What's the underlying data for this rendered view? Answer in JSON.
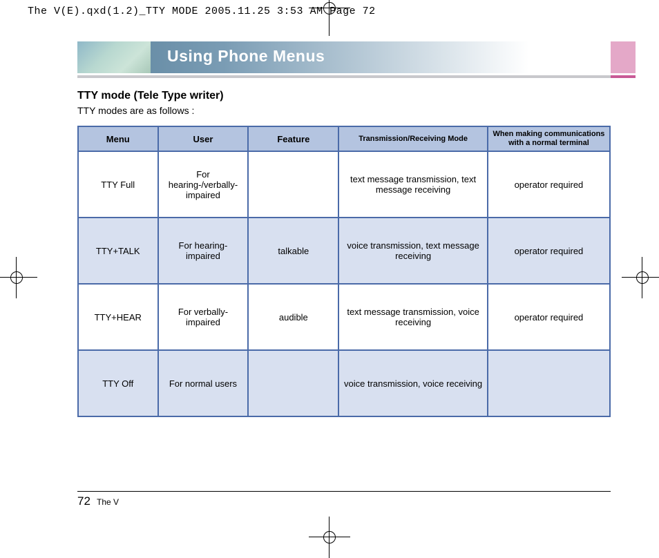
{
  "slug": "The V(E).qxd(1.2)_TTY MODE  2005.11.25  3:53 AM  Page 72",
  "header": {
    "title": "Using Phone Menus"
  },
  "section": {
    "title": "TTY mode (Tele Type writer)",
    "subtitle": "TTY modes are as follows :"
  },
  "table": {
    "columns": [
      "Menu",
      "User",
      "Feature",
      "Transmission/Receiving Mode",
      "When making communications with a normal terminal"
    ],
    "rows": [
      [
        "TTY Full",
        "For hearing-/verbally- impaired",
        "",
        "text message transmission, text message receiving",
        "operator required"
      ],
      [
        "TTY+TALK",
        "For hearing-impaired",
        "talkable",
        "voice transmission, text message receiving",
        "operator required"
      ],
      [
        "TTY+HEAR",
        "For verbally-impaired",
        "audible",
        "text message transmission, voice receiving",
        "operator required"
      ],
      [
        "TTY Off",
        "For normal users",
        "",
        "voice transmission, voice receiving",
        ""
      ]
    ],
    "header_bg": "#b4c4e0",
    "alt_row_bg": "#d8e0f0",
    "border_color": "#4a6aa8"
  },
  "footer": {
    "page_number": "72",
    "book_title": "The V"
  }
}
